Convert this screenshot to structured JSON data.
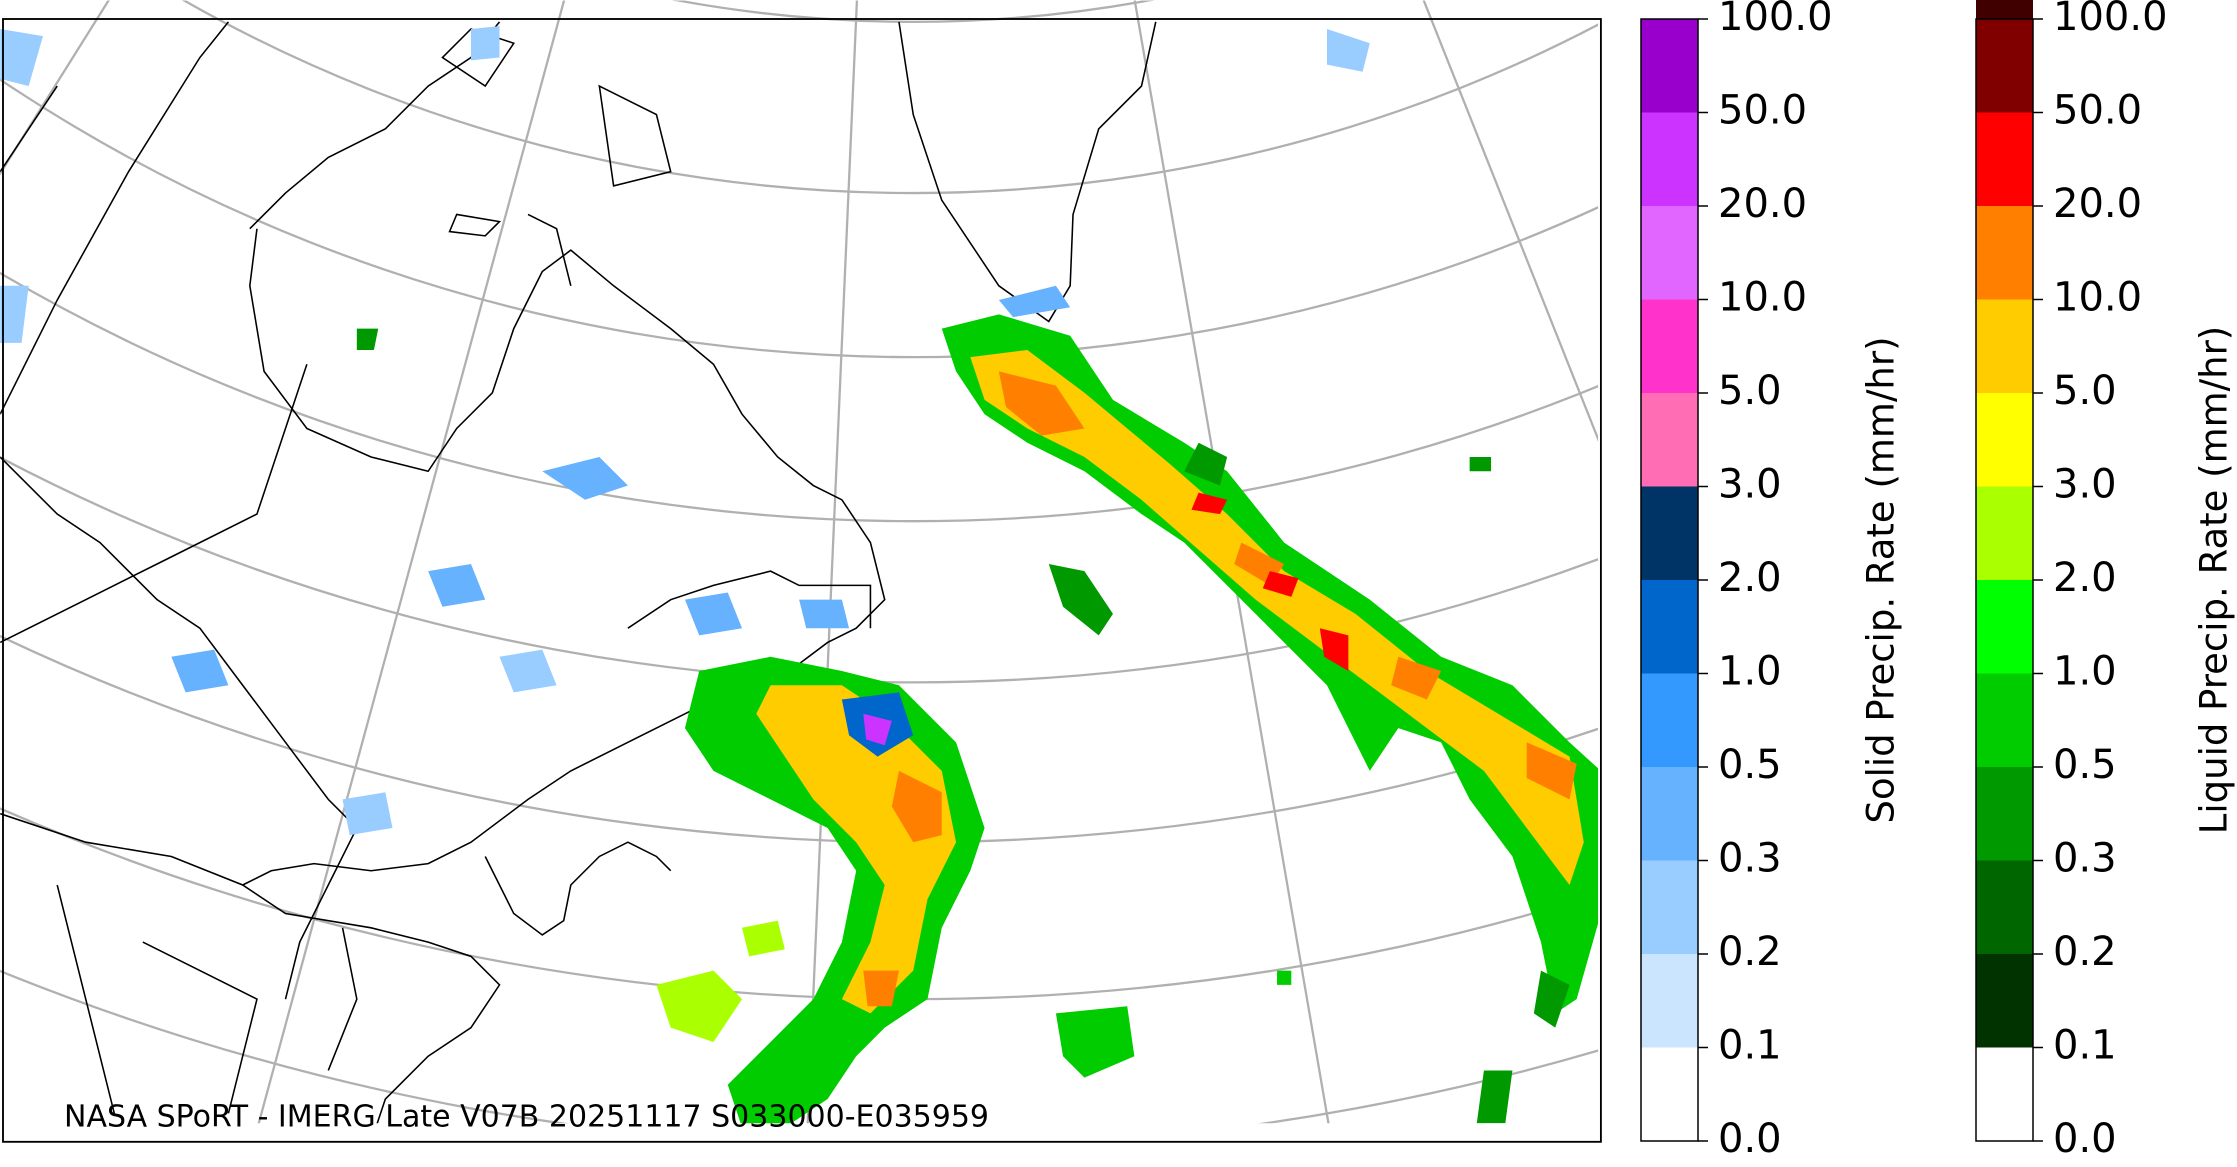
{
  "caption": "NASA SPoRT - IMERG Late V07B 20251117 S033000-E035959",
  "colorbars": [
    {
      "label": "Solid Precip. Rate (mm/hr)",
      "ticks": [
        {
          "value": 0,
          "label": "0.0"
        },
        {
          "value": 0.1,
          "label": "0.1"
        },
        {
          "value": 0.2,
          "label": "0.2"
        },
        {
          "value": 0.3,
          "label": "0.3"
        },
        {
          "value": 0.5,
          "label": "0.5"
        },
        {
          "value": 1,
          "label": "1.0"
        },
        {
          "value": 2,
          "label": "2.0"
        },
        {
          "value": 3,
          "label": "3.0"
        },
        {
          "value": 5,
          "label": "5.0"
        },
        {
          "value": 10,
          "label": "10.0"
        },
        {
          "value": 20,
          "label": "20.0"
        },
        {
          "value": 50,
          "label": "50.0"
        },
        {
          "value": 100,
          "label": "100.0"
        }
      ],
      "colors": [
        "#ffffff",
        "#cce5ff",
        "#99ccff",
        "#66b2ff",
        "#3399ff",
        "#0066cc",
        "#003366",
        "#ff6eb4",
        "#ff33cc",
        "#e066ff",
        "#cc33ff",
        "#9900cc"
      ]
    },
    {
      "label": "Liquid Precip. Rate (mm/hr)",
      "ticks": [
        {
          "value": 0,
          "label": "0.0"
        },
        {
          "value": 0.1,
          "label": "0.1"
        },
        {
          "value": 0.2,
          "label": "0.2"
        },
        {
          "value": 0.3,
          "label": "0.3"
        },
        {
          "value": 0.5,
          "label": "0.5"
        },
        {
          "value": 1,
          "label": "1.0"
        },
        {
          "value": 2,
          "label": "2.0"
        },
        {
          "value": 3,
          "label": "3.0"
        },
        {
          "value": 5,
          "label": "5.0"
        },
        {
          "value": 10,
          "label": "10.0"
        },
        {
          "value": 20,
          "label": "20.0"
        },
        {
          "value": 50,
          "label": "50.0"
        },
        {
          "value": 100,
          "label": "100.0"
        }
      ],
      "colors": [
        "#ffffff",
        "#003300",
        "#006600",
        "#009900",
        "#00cc00",
        "#00ff00",
        "#aaff00",
        "#ffff00",
        "#ffcc00",
        "#ff8000",
        "#ff0000",
        "#800000",
        "#400000"
      ]
    }
  ]
}
